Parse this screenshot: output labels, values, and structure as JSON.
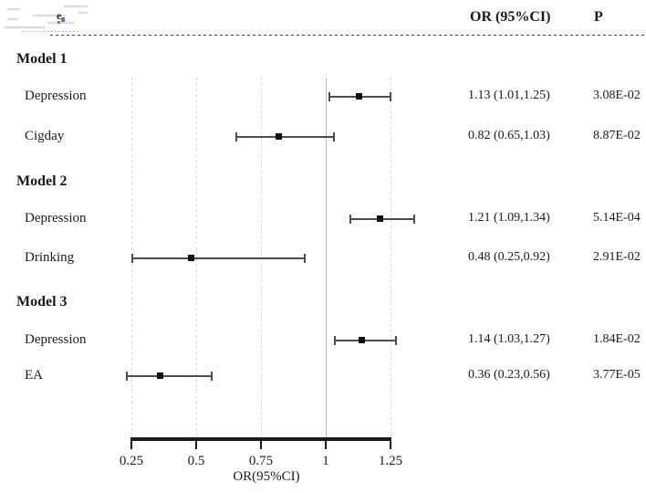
{
  "figure": {
    "header": {
      "or_col": "OR (95%CI)",
      "p_col": "P"
    },
    "corner_artifact_glyph": "e",
    "colors": {
      "marker": "#111111",
      "whisker": "#4d4d4d",
      "grid_dashed": "#dadada",
      "reference_line": "#b7b7b7",
      "axis": "#1a1a1a",
      "text": "#1a1a1a"
    }
  },
  "chart_data": {
    "type": "forest",
    "title": "",
    "xlabel": "OR(95%CI)",
    "x_ticks": [
      0.25,
      0.5,
      0.75,
      1,
      1.25
    ],
    "x_tick_labels": [
      "0.25",
      "0.5",
      "0.75",
      "1",
      "1.25"
    ],
    "xlim": [
      0.25,
      1.25
    ],
    "reference_line_x": 1,
    "grid": "dashed-vertical-at-ticks",
    "legend": "none",
    "rows": [
      {
        "type": "group",
        "label": "Model 1"
      },
      {
        "type": "item",
        "label": "Depression",
        "or": 1.13,
        "ci_low": 1.01,
        "ci_high": 1.25,
        "or_text": "1.13 (1.01,1.25)",
        "p": "3.08E-02"
      },
      {
        "type": "item",
        "label": "Cigday",
        "or": 0.82,
        "ci_low": 0.65,
        "ci_high": 1.03,
        "or_text": "0.82 (0.65,1.03)",
        "p": "8.87E-02"
      },
      {
        "type": "group",
        "label": "Model 2"
      },
      {
        "type": "item",
        "label": "Depression",
        "or": 1.21,
        "ci_low": 1.09,
        "ci_high": 1.34,
        "or_text": "1.21 (1.09,1.34)",
        "p": "5.14E-04"
      },
      {
        "type": "item",
        "label": "Drinking",
        "or": 0.48,
        "ci_low": 0.25,
        "ci_high": 0.92,
        "or_text": "0.48 (0.25,0.92)",
        "p": "2.91E-02"
      },
      {
        "type": "group",
        "label": "Model 3"
      },
      {
        "type": "item",
        "label": "Depression",
        "or": 1.14,
        "ci_low": 1.03,
        "ci_high": 1.27,
        "or_text": "1.14 (1.03,1.27)",
        "p": "1.84E-02"
      },
      {
        "type": "item",
        "label": "EA",
        "or": 0.36,
        "ci_low": 0.23,
        "ci_high": 0.56,
        "or_text": "0.36 (0.23,0.56)",
        "p": "3.77E-05"
      }
    ]
  }
}
